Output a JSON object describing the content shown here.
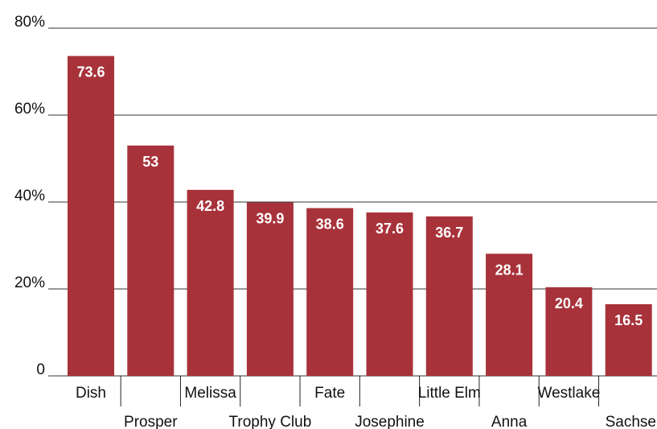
{
  "chart_data": {
    "type": "bar",
    "categories": [
      "Dish",
      "Prosper",
      "Melissa",
      "Trophy Club",
      "Fate",
      "Josephine",
      "Little Elm",
      "Anna",
      "Westlake",
      "Sachse"
    ],
    "values": [
      73.6,
      53,
      42.8,
      39.9,
      38.6,
      37.6,
      36.7,
      28.1,
      20.4,
      16.5
    ],
    "data_labels": [
      "73.6",
      "53",
      "42.8",
      "39.9",
      "38.6",
      "37.6",
      "36.7",
      "28.1",
      "20.4",
      "16.5"
    ],
    "ylim": [
      0,
      80
    ],
    "yticks": [
      0,
      20,
      40,
      60,
      80
    ],
    "ytick_labels": [
      "0",
      "20%",
      "40%",
      "60%",
      "80%"
    ],
    "grid": true,
    "legend": "none",
    "colors": {
      "bar": "#a8323a",
      "grid": "#333333",
      "label_text": "#ffffff"
    }
  }
}
